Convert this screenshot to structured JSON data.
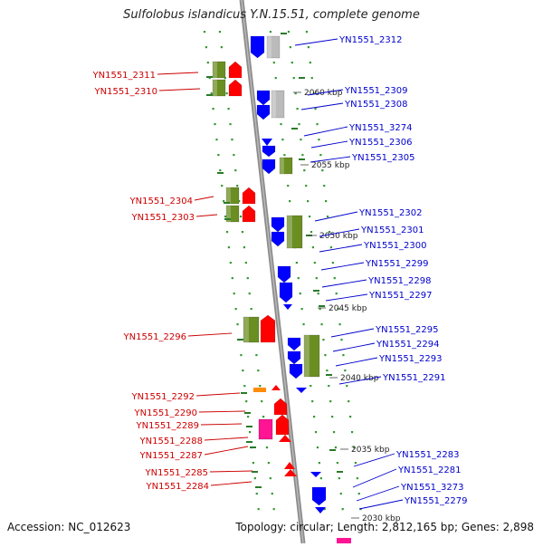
{
  "title": "Sulfolobus islandicus Y.N.15.51, complete genome",
  "footer": {
    "accession": "Accession: NC_012623",
    "summary": "Topology: circular; Length: 2,812,165 bp; Genes: 2,898"
  },
  "scale_labels": [
    "2060 kbp",
    "2055 kbp",
    "2050 kbp",
    "2045 kbp",
    "2040 kbp",
    "2035 kbp",
    "2030 kbp"
  ],
  "colors": {
    "backbone": "#8c8c8c",
    "plus_label": "#cc0000",
    "minus_label": "#0000cc",
    "cds_green": "#6b8e23",
    "cds_red": "#ff0000",
    "cds_blue": "#0000ff",
    "cds_gray": "#bbbbbb",
    "cds_orange": "#ff8c00",
    "cds_pink": "#ff1493",
    "dots": "#339933"
  },
  "left_genes": [
    "YN1551_2311",
    "YN1551_2310",
    "YN1551_2304",
    "YN1551_2303",
    "YN1551_2296",
    "YN1551_2292",
    "YN1551_2290",
    "YN1551_2289",
    "YN1551_2288",
    "YN1551_2287",
    "YN1551_2285",
    "YN1551_2284"
  ],
  "right_genes": [
    "YN1551_2312",
    "YN1551_2309",
    "YN1551_2308",
    "YN1551_3274",
    "YN1551_2306",
    "YN1551_2305",
    "YN1551_2302",
    "YN1551_2301",
    "YN1551_2300",
    "YN1551_2299",
    "YN1551_2298",
    "YN1551_2297",
    "YN1551_2295",
    "YN1551_2294",
    "YN1551_2293",
    "YN1551_2291",
    "YN1551_2283",
    "YN1551_2281",
    "YN1551_3273",
    "YN1551_2279"
  ]
}
